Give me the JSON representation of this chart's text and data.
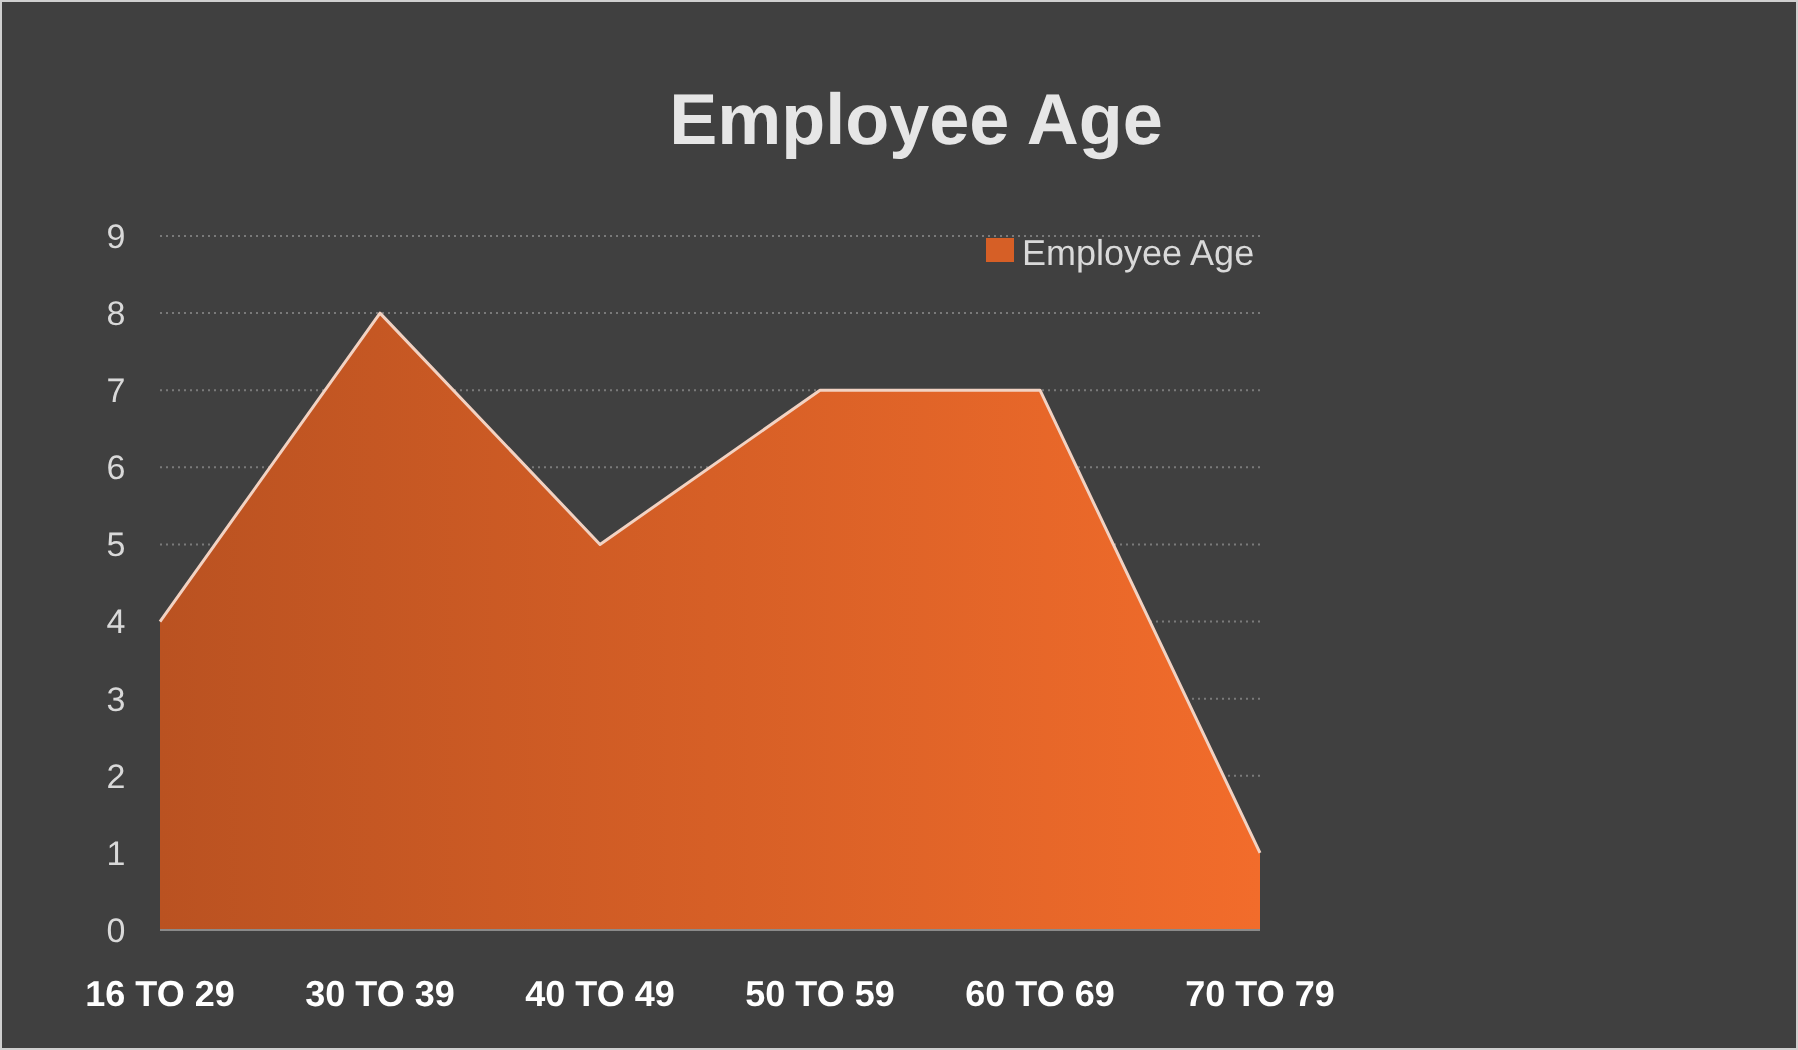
{
  "chart_data": {
    "type": "area",
    "title": "Employee Age",
    "categories": [
      "16 TO 29",
      "30 TO 39",
      "40 TO 49",
      "50 TO 59",
      "60 TO 69",
      "70 TO 79"
    ],
    "series": [
      {
        "name": "Employee Age",
        "color": "#d65f26",
        "values": [
          4,
          8,
          5,
          7,
          7,
          1
        ]
      }
    ],
    "ylim": [
      0,
      9
    ],
    "yticks": [
      0,
      1,
      2,
      3,
      4,
      5,
      6,
      7,
      8,
      9
    ],
    "grid": "y",
    "legend": "top right"
  }
}
